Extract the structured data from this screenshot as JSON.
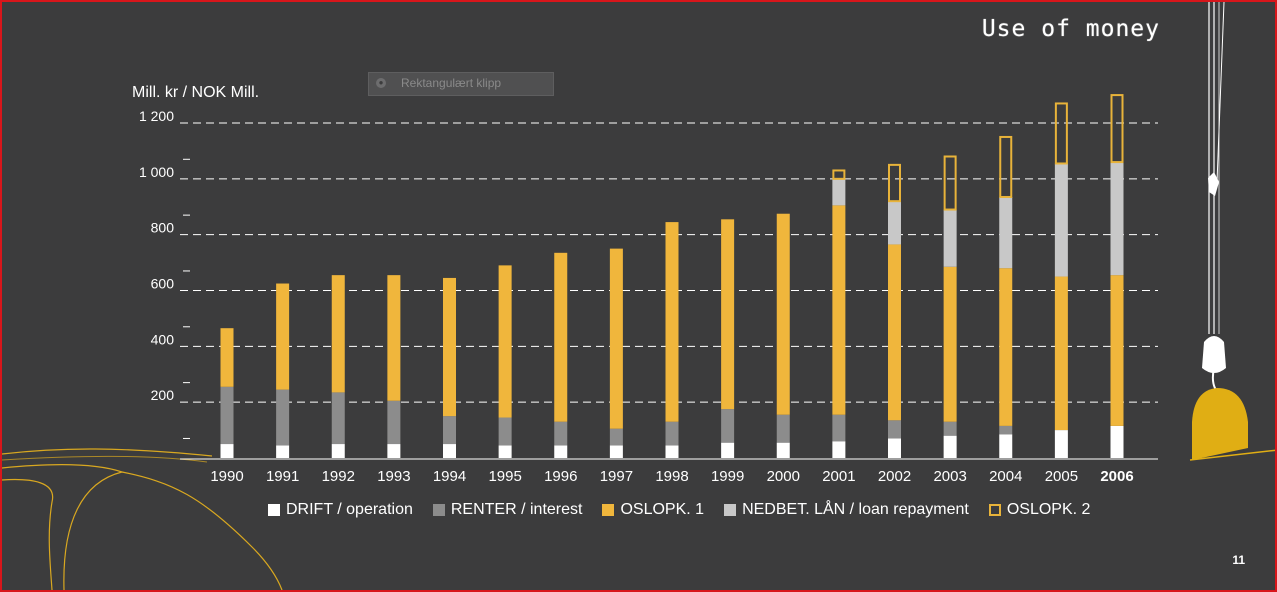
{
  "slide": {
    "title": "Use of money",
    "page_number": "11",
    "clip_tooltip": "Rektangulært klipp"
  },
  "colors": {
    "background": "#3c3c3d",
    "drift": "#ffffff",
    "renter": "#8c8c8c",
    "oslopk1": "#f0b63c",
    "nedbet": "#c8c8c8",
    "oslopk2_border": "#e8b33a",
    "grid": "#ffffff",
    "decor": "#d9a820"
  },
  "chart_data": {
    "type": "bar",
    "stacked": true,
    "ylabel": "Mill. kr / NOK Mill.",
    "ylim": [
      0,
      1200
    ],
    "yticks": [
      {
        "value": 200,
        "label": "200"
      },
      {
        "value": 400,
        "label": "400"
      },
      {
        "value": 600,
        "label": "600"
      },
      {
        "value": 800,
        "label": "800"
      },
      {
        "value": 1000,
        "label": "1 000"
      },
      {
        "value": 1200,
        "label": "1 200"
      }
    ],
    "minor_ticks": [
      70,
      270,
      470,
      670,
      870,
      1070
    ],
    "grid": true,
    "legend_position": "bottom",
    "categories": [
      "1990",
      "1991",
      "1992",
      "1993",
      "1994",
      "1995",
      "1996",
      "1997",
      "1998",
      "1999",
      "2000",
      "2001",
      "2002",
      "2003",
      "2004",
      "2005",
      "2006"
    ],
    "series": [
      {
        "name": "DRIFT / operation",
        "style": "drift",
        "values": [
          50,
          45,
          50,
          50,
          50,
          45,
          45,
          45,
          45,
          55,
          55,
          60,
          70,
          80,
          85,
          100,
          115
        ]
      },
      {
        "name": "RENTER / interest",
        "style": "renter",
        "values": [
          205,
          200,
          185,
          155,
          100,
          100,
          85,
          60,
          85,
          120,
          100,
          95,
          65,
          50,
          30,
          0,
          0
        ]
      },
      {
        "name": "OSLOPK. 1",
        "style": "oslopk1",
        "values": [
          210,
          380,
          420,
          450,
          495,
          545,
          605,
          645,
          715,
          680,
          720,
          750,
          630,
          555,
          565,
          550,
          540
        ]
      },
      {
        "name": "NEDBET. LÅN / loan repayment",
        "style": "nedbet",
        "values": [
          0,
          0,
          0,
          0,
          0,
          0,
          0,
          0,
          0,
          0,
          0,
          95,
          155,
          205,
          255,
          405,
          405
        ]
      },
      {
        "name": "OSLOPK. 2",
        "style": "oslopk2",
        "values": [
          0,
          0,
          0,
          0,
          0,
          0,
          0,
          0,
          0,
          0,
          0,
          30,
          130,
          190,
          215,
          215,
          240
        ]
      }
    ]
  }
}
